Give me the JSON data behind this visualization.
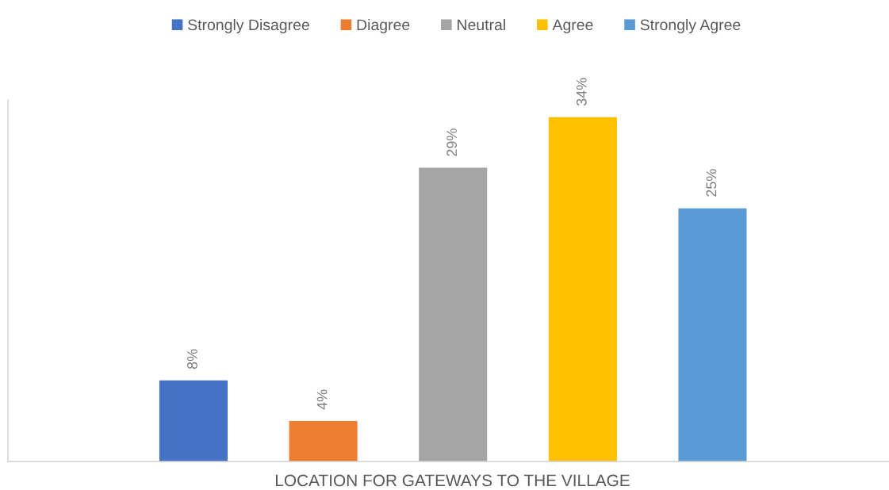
{
  "chart_data": {
    "type": "bar",
    "stacked": true,
    "xlabel": "LOCATION FOR GATEWAYS TO THE VILLAGE",
    "categories": [
      null,
      null,
      null,
      null,
      null
    ],
    "series": [
      {
        "name": "Strongly Disagree",
        "color": "#4472c4",
        "values": [
          8,
          null,
          null,
          null,
          null
        ],
        "value_labels": [
          "8%",
          null,
          null,
          null,
          null
        ]
      },
      {
        "name": "Diagree",
        "color": "#ed7d31",
        "values": [
          null,
          4,
          null,
          null,
          null
        ],
        "value_labels": [
          null,
          "4%",
          null,
          null,
          null
        ]
      },
      {
        "name": "Neutral",
        "color": "#a5a5a5",
        "values": [
          null,
          null,
          29,
          null,
          null
        ],
        "value_labels": [
          null,
          null,
          "29%",
          null,
          null
        ]
      },
      {
        "name": "Agree",
        "color": "#ffc000",
        "values": [
          null,
          null,
          null,
          34,
          null
        ],
        "value_labels": [
          null,
          null,
          null,
          "34%",
          null
        ]
      },
      {
        "name": "Strongly Agree",
        "color": "#5b9bd5",
        "values": [
          null,
          null,
          null,
          null,
          25
        ],
        "value_labels": [
          null,
          null,
          null,
          null,
          "25%"
        ]
      }
    ],
    "legend": "top",
    "grid": false
  }
}
